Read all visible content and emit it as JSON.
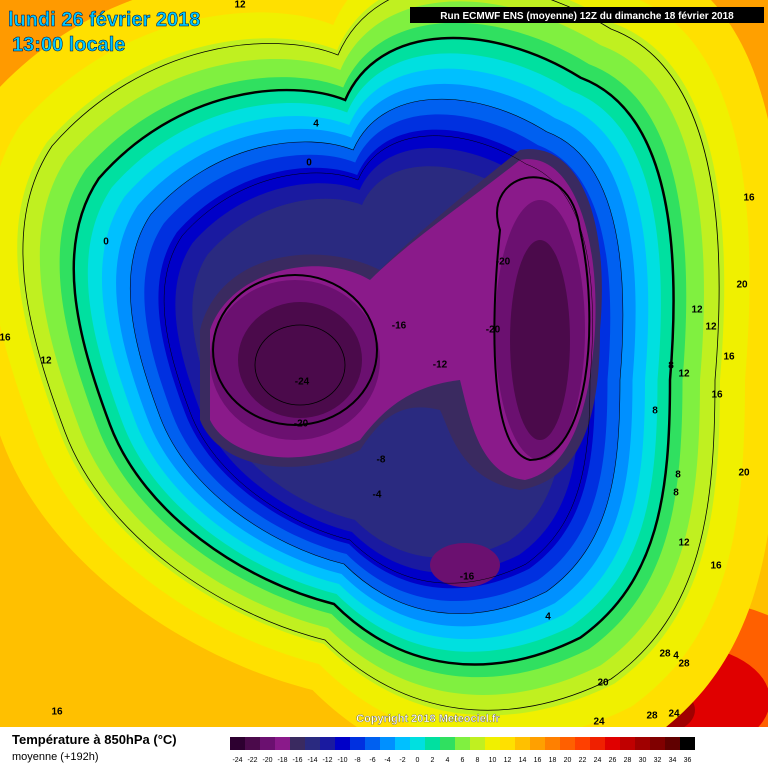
{
  "header": {
    "title": "lundi 26 février 2018",
    "subtitle": "13:00 locale",
    "run": "Run ECMWF ENS (moyenne) 12Z du dimanche 18 février 2018"
  },
  "map": {
    "contour_labels": [
      "12",
      "4",
      "0",
      "0",
      "16",
      "-20",
      "20",
      "12",
      "-16",
      "-20",
      "12",
      "16",
      "16",
      "-12",
      "12",
      "8",
      "12",
      "-24",
      "16",
      "8",
      "-20",
      "-8",
      "8",
      "20",
      "8",
      "-4",
      "12",
      "-16",
      "16",
      "4",
      "28",
      "4",
      "28",
      "20",
      "28",
      "24",
      "24",
      "16"
    ],
    "copyright": "Copyright 2018 Meteociel.fr"
  },
  "legend": {
    "title": "Température à 850hPa (°C)",
    "subtitle": "moyenne  (+192h)",
    "ticks": [
      -24,
      -22,
      -20,
      -18,
      -16,
      -14,
      -12,
      -10,
      -8,
      -6,
      -4,
      -2,
      0,
      2,
      4,
      6,
      8,
      10,
      12,
      14,
      16,
      18,
      20,
      22,
      24,
      26,
      28,
      30,
      32,
      34,
      36
    ],
    "colors": [
      "#2d0030",
      "#4b0a4b",
      "#6b1070",
      "#8a1a8a",
      "#3a2a60",
      "#2a2a80",
      "#1a1aa0",
      "#0000c8",
      "#0030e0",
      "#0060f0",
      "#0090ff",
      "#00c0ff",
      "#00e0e0",
      "#00e0a0",
      "#30e060",
      "#80f040",
      "#c0f020",
      "#f0f000",
      "#ffe000",
      "#ffc000",
      "#ffa000",
      "#ff8000",
      "#ff6000",
      "#ff4000",
      "#f02000",
      "#e00000",
      "#c00000",
      "#a00000",
      "#800000",
      "#600000",
      "#000000"
    ]
  }
}
